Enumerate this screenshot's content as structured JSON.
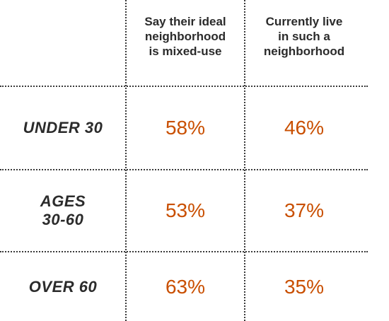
{
  "chart_data": {
    "type": "table",
    "title": "",
    "columns": [
      "Say their ideal neighborhood is mixed-use",
      "Currently live in such a neighborhood"
    ],
    "column_lines": [
      [
        "Say their ideal",
        "neighborhood",
        "is mixed-use"
      ],
      [
        "Currently live",
        "in such a",
        "neighborhood"
      ]
    ],
    "rows": [
      {
        "label_lines": [
          "UNDER 30"
        ],
        "values": [
          "58%",
          "46%"
        ]
      },
      {
        "label_lines": [
          "AGES",
          "30-60"
        ],
        "values": [
          "53%",
          "37%"
        ]
      },
      {
        "label_lines": [
          "OVER 60"
        ],
        "values": [
          "63%",
          "35%"
        ]
      }
    ]
  },
  "colors": {
    "value_text": "#c94f00",
    "label_text": "#2b2b2b",
    "dotted_rule": "#3a3a3a"
  }
}
